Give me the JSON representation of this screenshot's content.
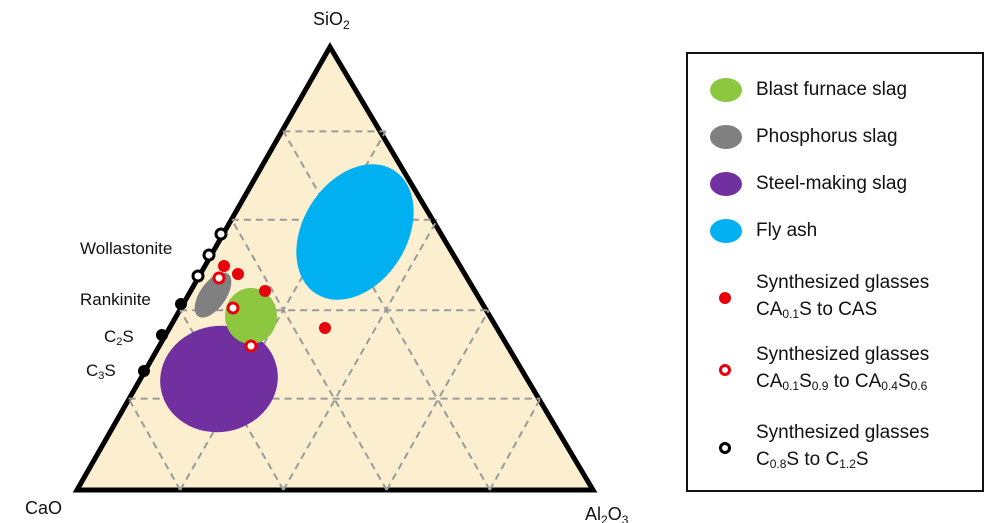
{
  "vertices": {
    "top": {
      "base": "SiO",
      "sub": "2"
    },
    "left": {
      "base": "CaO"
    },
    "right": {
      "base": "Al",
      "sub1": "2",
      "mid": "O",
      "sub2": "3"
    }
  },
  "minerals": [
    {
      "name": "Wollastonite"
    },
    {
      "name": "Rankinite"
    },
    {
      "base": "C",
      "sub": "2",
      "rest": "S"
    },
    {
      "base": "C",
      "sub": "3",
      "rest": "S"
    }
  ],
  "regions": [
    {
      "name": "Blast furnace slag",
      "color": "#8DC63F"
    },
    {
      "name": "Phosphorus slag",
      "color": "#808080"
    },
    {
      "name": "Steel-making slag",
      "color": "#7030A0"
    },
    {
      "name": "Fly ash",
      "color": "#00B0F0"
    }
  ],
  "colors": {
    "field": "#FCEFD0",
    "grid": "#9a9a9a",
    "red": "#E8000B",
    "black": "#000000"
  },
  "legend": {
    "blast": "Blast furnace slag",
    "phos": "Phosphorus slag",
    "steel": "Steel-making slag",
    "fly": "Fly ash",
    "syn1": {
      "title": "Synthesized glasses",
      "l2a": "CA",
      "l2b": "0.1",
      "l2c": "S to CAS"
    },
    "syn2": {
      "title": "Synthesized glasses",
      "a": "CA",
      "b": "0.1",
      "c": "S",
      "d": "0.9",
      "e": " to CA",
      "f": "0.4",
      "g": "S",
      "h": "0.6"
    },
    "syn3": {
      "title": "Synthesized glasses",
      "a": "C",
      "b": "0.8",
      "c": "S to C",
      "d": "1.2",
      "e": "S"
    }
  }
}
